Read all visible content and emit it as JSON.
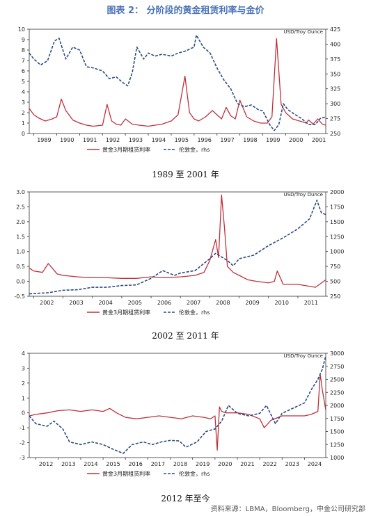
{
  "figure_title": "图表 2： 分阶段的黄金租赁利率与金价",
  "source_note": "资料来源：LBMA，Bloomberg，中金公司研究部",
  "colors": {
    "rate": "#c0303a",
    "gold": "#2a4a7f",
    "title": "#4a72b8"
  },
  "chart_data": [
    {
      "type": "line",
      "caption": "1989 至 2001 年",
      "rhs_unit": "USD/Troy Ounce",
      "legend": [
        "黄金3月期租赁利率",
        "伦敦金，rhs"
      ],
      "legend_position": "bottom-center",
      "grid": false,
      "x_range": [
        1988.8,
        2001.75
      ],
      "x_ticks": [
        "1989",
        "1990",
        "1991",
        "1992",
        "1993",
        "1994",
        "1995",
        "1996",
        "1997",
        "1998",
        "1999",
        "2000",
        "2001"
      ],
      "ylim_left": [
        0,
        10
      ],
      "yticks_left": [
        "0",
        "1",
        "2",
        "3",
        "4",
        "5",
        "6",
        "7",
        "8",
        "9",
        "10"
      ],
      "ylim_right": [
        250,
        425
      ],
      "yticks_right": [
        "250",
        "275",
        "300",
        "325",
        "350",
        "375",
        "400",
        "425"
      ],
      "series": [
        {
          "name": "黄金3月期租赁利率",
          "axis": "left",
          "style": "solid",
          "x": [
            1988.8,
            1989.0,
            1989.2,
            1989.5,
            1989.8,
            1990.0,
            1990.2,
            1990.4,
            1990.7,
            1991.0,
            1991.3,
            1991.6,
            1992.0,
            1992.2,
            1992.4,
            1992.6,
            1992.8,
            1993.0,
            1993.3,
            1993.6,
            1994.0,
            1994.3,
            1994.6,
            1995.0,
            1995.3,
            1995.6,
            1995.8,
            1996.0,
            1996.2,
            1996.5,
            1996.8,
            1997.0,
            1997.2,
            1997.4,
            1997.6,
            1997.8,
            1998.0,
            1998.3,
            1998.6,
            1998.9,
            1999.2,
            1999.4,
            1999.6,
            1999.8,
            2000.0,
            2000.3,
            2000.6,
            2000.9,
            2001.0,
            2001.2,
            2001.4,
            2001.6,
            2001.75
          ],
          "y": [
            2.4,
            1.8,
            1.5,
            1.2,
            1.4,
            1.6,
            3.3,
            2.2,
            1.3,
            1.0,
            0.8,
            0.7,
            0.8,
            2.8,
            1.2,
            0.9,
            0.8,
            1.4,
            0.9,
            0.8,
            0.7,
            0.8,
            0.9,
            1.2,
            1.8,
            5.5,
            2.0,
            1.4,
            1.2,
            1.6,
            2.2,
            1.8,
            1.4,
            2.5,
            1.7,
            1.4,
            3.2,
            1.6,
            1.2,
            1.0,
            1.0,
            1.6,
            9.1,
            2.8,
            2.0,
            1.4,
            1.2,
            1.0,
            1.3,
            0.9,
            1.4,
            0.9,
            0.8
          ]
        },
        {
          "name": "伦敦金，rhs",
          "axis": "right",
          "style": "dashed",
          "x": [
            1988.8,
            1989.0,
            1989.3,
            1989.6,
            1989.9,
            1990.1,
            1990.4,
            1990.7,
            1991.0,
            1991.3,
            1991.6,
            1992.0,
            1992.3,
            1992.6,
            1992.9,
            1993.1,
            1993.3,
            1993.5,
            1993.8,
            1994.0,
            1994.3,
            1994.6,
            1995.0,
            1995.3,
            1995.6,
            1996.0,
            1996.1,
            1996.4,
            1996.7,
            1997.0,
            1997.3,
            1997.6,
            1997.9,
            1998.2,
            1998.5,
            1998.8,
            1999.0,
            1999.3,
            1999.5,
            1999.7,
            1999.9,
            2000.1,
            2000.4,
            2000.7,
            2001.0,
            2001.3,
            2001.5,
            2001.75
          ],
          "y": [
            385,
            375,
            365,
            372,
            405,
            410,
            375,
            395,
            390,
            362,
            360,
            355,
            342,
            345,
            335,
            330,
            352,
            395,
            375,
            385,
            380,
            383,
            380,
            385,
            388,
            395,
            415,
            395,
            385,
            360,
            340,
            325,
            300,
            295,
            298,
            290,
            288,
            265,
            255,
            265,
            300,
            290,
            282,
            275,
            265,
            265,
            275,
            278
          ]
        }
      ]
    },
    {
      "type": "line",
      "caption": "2002 至 2011 年",
      "rhs_unit": "USD/Troy Ounce",
      "legend": [
        "黄金3月期租赁利率",
        "伦敦金，rhs"
      ],
      "legend_position": "bottom-center",
      "grid": false,
      "x_range": [
        2001.85,
        2011.95
      ],
      "x_ticks": [
        "2002",
        "2003",
        "2004",
        "2005",
        "2006",
        "2007",
        "2008",
        "2009",
        "2010",
        "2011"
      ],
      "ylim_left": [
        -0.5,
        3.0
      ],
      "yticks_left": [
        "-0.5",
        "0.0",
        "0.5",
        "1.0",
        "1.5",
        "2.0",
        "2.5",
        "3.0"
      ],
      "ylim_right": [
        250,
        2000
      ],
      "yticks_right": [
        "250",
        "500",
        "750",
        "1000",
        "1250",
        "1500",
        "1750",
        "2000"
      ],
      "series": [
        {
          "name": "黄金3月期租赁利率",
          "axis": "left",
          "style": "solid",
          "x": [
            2001.85,
            2002.0,
            2002.3,
            2002.5,
            2002.8,
            2003.0,
            2003.5,
            2004.0,
            2004.5,
            2005.0,
            2005.5,
            2006.0,
            2006.5,
            2007.0,
            2007.5,
            2007.8,
            2008.0,
            2008.2,
            2008.3,
            2008.4,
            2008.5,
            2008.6,
            2008.8,
            2009.0,
            2009.3,
            2009.6,
            2010.0,
            2010.2,
            2010.3,
            2010.5,
            2010.8,
            2011.0,
            2011.3,
            2011.6,
            2011.95
          ],
          "y": [
            0.45,
            0.35,
            0.3,
            0.6,
            0.25,
            0.2,
            0.15,
            0.12,
            0.12,
            0.1,
            0.1,
            0.15,
            0.12,
            0.15,
            0.2,
            0.3,
            0.7,
            1.4,
            0.8,
            2.9,
            1.8,
            0.5,
            0.3,
            0.2,
            0.05,
            0.0,
            -0.05,
            0.0,
            0.35,
            -0.1,
            -0.1,
            -0.1,
            -0.15,
            -0.2,
            0.05
          ]
        },
        {
          "name": "伦敦金，rhs",
          "axis": "right",
          "style": "dashed",
          "x": [
            2001.85,
            2002.5,
            2003.0,
            2003.5,
            2004.0,
            2004.5,
            2005.0,
            2005.5,
            2006.0,
            2006.4,
            2006.8,
            2007.0,
            2007.5,
            2008.0,
            2008.2,
            2008.6,
            2008.8,
            2009.0,
            2009.5,
            2010.0,
            2010.5,
            2011.0,
            2011.4,
            2011.65,
            2011.8,
            2011.95
          ],
          "y": [
            290,
            310,
            350,
            360,
            400,
            400,
            430,
            440,
            550,
            680,
            600,
            640,
            680,
            880,
            970,
            850,
            760,
            880,
            940,
            1100,
            1230,
            1380,
            1550,
            1860,
            1650,
            1620
          ]
        }
      ]
    },
    {
      "type": "line",
      "caption": "2012 年至今",
      "rhs_unit": "USD/Troy Ounce",
      "legend": [
        "黄金3月期租赁利率",
        "伦敦金，rhs"
      ],
      "legend_position": "bottom-center",
      "grid": false,
      "x_range": [
        2011.7,
        2024.95
      ],
      "x_ticks": [
        "2012",
        "2013",
        "2014",
        "2015",
        "2016",
        "2017",
        "2018",
        "2019",
        "2020",
        "2021",
        "2022",
        "2023",
        "2024"
      ],
      "ylim_left": [
        -3,
        4
      ],
      "yticks_left": [
        "-3",
        "-2",
        "-1",
        "0",
        "1",
        "2",
        "3",
        "4"
      ],
      "ylim_right": [
        1000,
        3000
      ],
      "yticks_right": [
        "1000",
        "1250",
        "1500",
        "1750",
        "2000",
        "2250",
        "2500",
        "2750",
        "3000"
      ],
      "series": [
        {
          "name": "黄金3月期租赁利率",
          "axis": "left",
          "style": "solid",
          "x": [
            2011.7,
            2012.0,
            2012.5,
            2013.0,
            2013.5,
            2014.0,
            2014.5,
            2015.0,
            2015.3,
            2015.6,
            2016.0,
            2016.5,
            2017.0,
            2017.5,
            2018.0,
            2018.5,
            2019.0,
            2019.5,
            2019.8,
            2020.0,
            2020.1,
            2020.2,
            2020.3,
            2020.5,
            2021.0,
            2021.5,
            2022.0,
            2022.2,
            2022.5,
            2023.0,
            2023.5,
            2024.0,
            2024.3,
            2024.6,
            2024.7,
            2024.8,
            2024.95
          ],
          "y": [
            -0.2,
            -0.1,
            0.0,
            0.15,
            0.2,
            0.1,
            0.2,
            0.1,
            0.3,
            0.0,
            -0.3,
            -0.4,
            -0.3,
            -0.2,
            -0.3,
            -0.4,
            -0.2,
            -0.3,
            -0.4,
            -0.2,
            -2.5,
            0.4,
            0.1,
            0.0,
            0.0,
            -0.1,
            -0.4,
            -1.0,
            -0.5,
            -0.2,
            -0.2,
            -0.2,
            -0.1,
            0.1,
            2.6,
            1.5,
            0.2
          ]
        },
        {
          "name": "伦敦金，rhs",
          "axis": "right",
          "style": "dashed",
          "x": [
            2011.7,
            2012.0,
            2012.5,
            2012.8,
            2013.2,
            2013.5,
            2014.0,
            2014.5,
            2015.0,
            2015.5,
            2015.9,
            2016.3,
            2016.8,
            2017.2,
            2017.6,
            2018.0,
            2018.4,
            2018.7,
            2019.2,
            2019.6,
            2020.0,
            2020.3,
            2020.6,
            2021.0,
            2021.5,
            2022.0,
            2022.3,
            2022.7,
            2023.0,
            2023.5,
            2024.0,
            2024.3,
            2024.6,
            2024.8,
            2024.95
          ],
          "y": [
            1800,
            1650,
            1600,
            1700,
            1550,
            1300,
            1250,
            1300,
            1250,
            1150,
            1080,
            1250,
            1300,
            1250,
            1300,
            1330,
            1320,
            1200,
            1300,
            1500,
            1550,
            1700,
            2000,
            1850,
            1800,
            1850,
            2000,
            1650,
            1850,
            1950,
            2050,
            2300,
            2500,
            2700,
            2950
          ]
        }
      ]
    }
  ]
}
